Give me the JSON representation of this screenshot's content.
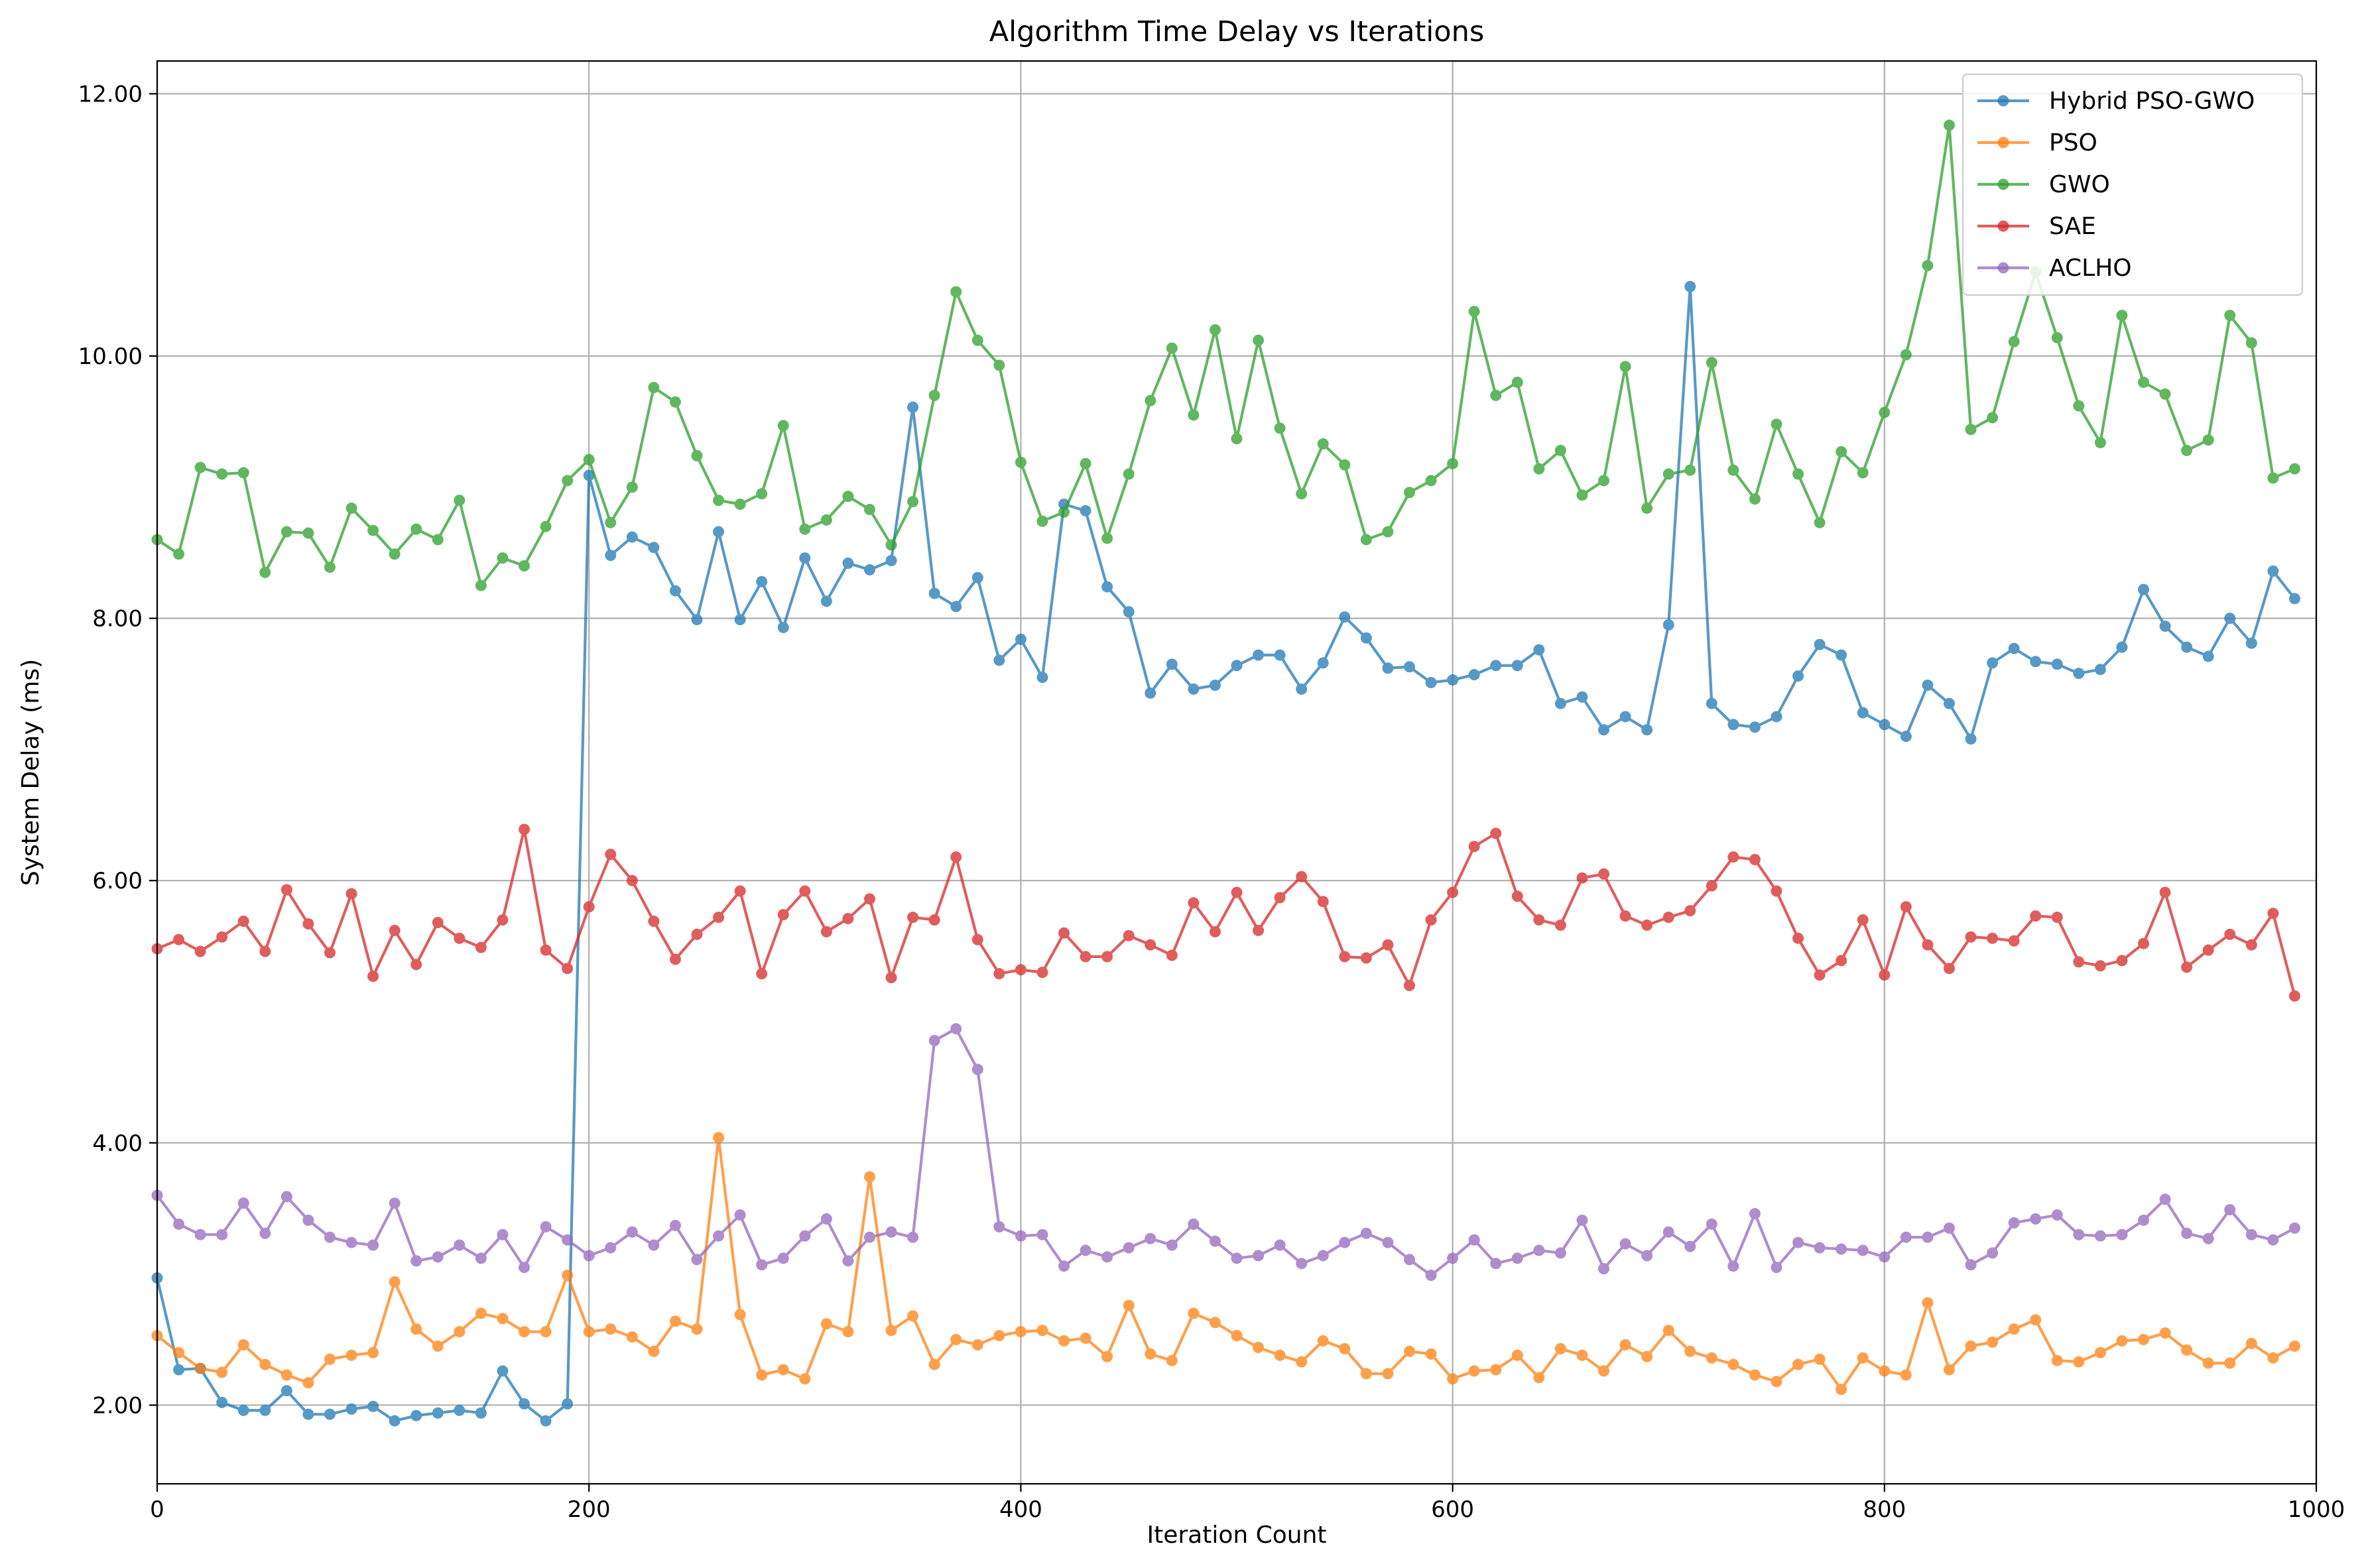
{
  "chart_data": {
    "type": "line",
    "title": "Algorithm Time Delay vs Iterations",
    "xlabel": "Iteration Count",
    "ylabel": "System Delay (ms)",
    "xlim": [
      0,
      1000
    ],
    "ylim": [
      1.4,
      12.25
    ],
    "xticks": [
      0,
      200,
      400,
      600,
      800,
      1000
    ],
    "xtick_labels": [
      "0",
      "200",
      "400",
      "600",
      "800",
      "1000"
    ],
    "yticks": [
      2,
      4,
      6,
      8,
      10,
      12
    ],
    "ytick_labels": [
      "2.00",
      "4.00",
      "6.00",
      "8.00",
      "10.00",
      "12.00"
    ],
    "grid": true,
    "legend_position": "top-right",
    "x": [
      0,
      10,
      20,
      30,
      40,
      50,
      60,
      70,
      80,
      90,
      100,
      110,
      120,
      130,
      140,
      150,
      160,
      170,
      180,
      190,
      200,
      210,
      220,
      230,
      240,
      250,
      260,
      270,
      280,
      290,
      300,
      310,
      320,
      330,
      340,
      350,
      360,
      370,
      380,
      390,
      400,
      410,
      420,
      430,
      440,
      450,
      460,
      470,
      480,
      490,
      500,
      510,
      520,
      530,
      540,
      550,
      560,
      570,
      580,
      590,
      600,
      610,
      620,
      630,
      640,
      650,
      660,
      670,
      680,
      690,
      700,
      710,
      720,
      730,
      740,
      750,
      760,
      770,
      780,
      790,
      800,
      810,
      820,
      830,
      840,
      850,
      860,
      870,
      880,
      890,
      900,
      910,
      920,
      930,
      940,
      950,
      960,
      970,
      980,
      990
    ],
    "series": [
      {
        "name": "Hybrid PSO-GWO",
        "color": "#1f77b4",
        "values": [
          2.97,
          2.27,
          2.28,
          2.02,
          1.96,
          1.96,
          2.11,
          1.93,
          1.93,
          1.97,
          1.99,
          1.88,
          1.92,
          1.94,
          1.96,
          1.94,
          2.26,
          2.01,
          1.88,
          2.01,
          9.09,
          8.48,
          8.62,
          8.54,
          8.21,
          7.99,
          8.66,
          7.99,
          8.28,
          7.93,
          8.46,
          8.13,
          8.42,
          8.37,
          8.44,
          9.61,
          8.19,
          8.09,
          8.31,
          7.68,
          7.84,
          7.55,
          8.87,
          8.82,
          8.24,
          8.05,
          7.43,
          7.65,
          7.46,
          7.49,
          7.64,
          7.72,
          7.72,
          7.46,
          7.66,
          8.01,
          7.85,
          7.62,
          7.63,
          7.51,
          7.53,
          7.57,
          7.64,
          7.64,
          7.76,
          7.35,
          7.4,
          7.15,
          7.25,
          7.15,
          7.95,
          10.53,
          7.35,
          7.19,
          7.17,
          7.25,
          7.56,
          7.8,
          7.72,
          7.28,
          7.19,
          7.1,
          7.49,
          7.35,
          7.08,
          7.66,
          7.77,
          7.67,
          7.65,
          7.58,
          7.61,
          7.78,
          8.22,
          7.94,
          7.78,
          7.71,
          8.0,
          7.81,
          8.36,
          8.15
        ]
      },
      {
        "name": "PSO",
        "color": "#ff7f0e",
        "values": [
          2.53,
          2.4,
          2.28,
          2.25,
          2.46,
          2.31,
          2.23,
          2.17,
          2.35,
          2.38,
          2.4,
          2.94,
          2.58,
          2.45,
          2.56,
          2.7,
          2.66,
          2.56,
          2.56,
          2.99,
          2.56,
          2.58,
          2.52,
          2.41,
          2.64,
          2.58,
          4.04,
          2.69,
          2.23,
          2.27,
          2.2,
          2.62,
          2.56,
          3.74,
          2.57,
          2.68,
          2.31,
          2.5,
          2.46,
          2.53,
          2.56,
          2.57,
          2.49,
          2.51,
          2.37,
          2.76,
          2.39,
          2.34,
          2.7,
          2.63,
          2.53,
          2.44,
          2.38,
          2.33,
          2.49,
          2.43,
          2.24,
          2.24,
          2.41,
          2.39,
          2.2,
          2.26,
          2.27,
          2.38,
          2.21,
          2.43,
          2.38,
          2.26,
          2.46,
          2.37,
          2.57,
          2.41,
          2.36,
          2.31,
          2.23,
          2.18,
          2.31,
          2.35,
          2.12,
          2.36,
          2.26,
          2.23,
          2.78,
          2.27,
          2.45,
          2.48,
          2.58,
          2.65,
          2.34,
          2.33,
          2.4,
          2.49,
          2.5,
          2.55,
          2.42,
          2.32,
          2.32,
          2.47,
          2.36,
          2.45
        ]
      },
      {
        "name": "GWO",
        "color": "#2ca02c",
        "values": [
          8.6,
          8.49,
          9.15,
          9.1,
          9.11,
          8.35,
          8.66,
          8.65,
          8.39,
          8.84,
          8.67,
          8.49,
          8.68,
          8.6,
          8.9,
          8.25,
          8.46,
          8.4,
          8.7,
          9.05,
          9.21,
          8.73,
          9.0,
          9.76,
          9.65,
          9.24,
          8.9,
          8.87,
          8.95,
          9.47,
          8.68,
          8.75,
          8.93,
          8.83,
          8.56,
          8.89,
          9.7,
          10.49,
          10.12,
          9.93,
          9.19,
          8.74,
          8.81,
          9.18,
          8.61,
          9.1,
          9.66,
          10.06,
          9.55,
          10.2,
          9.37,
          10.12,
          9.45,
          8.95,
          9.33,
          9.17,
          8.6,
          8.66,
          8.96,
          9.05,
          9.18,
          10.34,
          9.7,
          9.8,
          9.14,
          9.28,
          8.94,
          9.05,
          9.92,
          8.84,
          9.1,
          9.13,
          9.95,
          9.13,
          8.91,
          9.48,
          9.1,
          8.73,
          9.27,
          9.11,
          9.57,
          10.01,
          10.69,
          11.76,
          9.44,
          9.53,
          10.11,
          10.64,
          10.14,
          9.62,
          9.34,
          10.31,
          9.8,
          9.71,
          9.28,
          9.36,
          10.31,
          10.1,
          9.07,
          9.14
        ]
      },
      {
        "name": "SAE",
        "color": "#d62728",
        "values": [
          5.48,
          5.55,
          5.46,
          5.57,
          5.69,
          5.46,
          5.93,
          5.67,
          5.45,
          5.9,
          5.27,
          5.62,
          5.36,
          5.68,
          5.56,
          5.49,
          5.7,
          6.39,
          5.47,
          5.33,
          5.8,
          6.2,
          6.0,
          5.69,
          5.4,
          5.59,
          5.72,
          5.92,
          5.29,
          5.74,
          5.92,
          5.61,
          5.71,
          5.86,
          5.26,
          5.72,
          5.7,
          6.18,
          5.55,
          5.29,
          5.32,
          5.3,
          5.6,
          5.42,
          5.42,
          5.58,
          5.51,
          5.43,
          5.83,
          5.61,
          5.91,
          5.62,
          5.87,
          6.03,
          5.84,
          5.42,
          5.41,
          5.51,
          5.2,
          5.7,
          5.91,
          6.26,
          6.36,
          5.88,
          5.7,
          5.66,
          6.02,
          6.05,
          5.73,
          5.66,
          5.72,
          5.77,
          5.96,
          6.18,
          6.16,
          5.92,
          5.56,
          5.28,
          5.39,
          5.7,
          5.28,
          5.8,
          5.51,
          5.33,
          5.57,
          5.56,
          5.54,
          5.73,
          5.72,
          5.38,
          5.35,
          5.39,
          5.52,
          5.91,
          5.34,
          5.47,
          5.59,
          5.51,
          5.75,
          5.12
        ]
      },
      {
        "name": "ACLHO",
        "color": "#9467bd",
        "values": [
          3.6,
          3.38,
          3.3,
          3.3,
          3.54,
          3.31,
          3.59,
          3.41,
          3.28,
          3.24,
          3.22,
          3.54,
          3.1,
          3.13,
          3.22,
          3.12,
          3.3,
          3.05,
          3.36,
          3.26,
          3.14,
          3.2,
          3.32,
          3.22,
          3.37,
          3.11,
          3.29,
          3.45,
          3.07,
          3.12,
          3.29,
          3.42,
          3.1,
          3.28,
          3.32,
          3.28,
          4.78,
          4.87,
          4.56,
          3.36,
          3.29,
          3.3,
          3.06,
          3.18,
          3.13,
          3.2,
          3.27,
          3.22,
          3.38,
          3.25,
          3.12,
          3.14,
          3.22,
          3.08,
          3.14,
          3.24,
          3.31,
          3.24,
          3.11,
          2.99,
          3.12,
          3.26,
          3.08,
          3.12,
          3.18,
          3.16,
          3.41,
          3.04,
          3.23,
          3.14,
          3.32,
          3.21,
          3.38,
          3.06,
          3.46,
          3.05,
          3.24,
          3.2,
          3.19,
          3.18,
          3.13,
          3.28,
          3.28,
          3.35,
          3.07,
          3.16,
          3.39,
          3.42,
          3.45,
          3.3,
          3.29,
          3.3,
          3.41,
          3.57,
          3.31,
          3.27,
          3.49,
          3.3,
          3.26,
          3.35
        ]
      }
    ]
  }
}
